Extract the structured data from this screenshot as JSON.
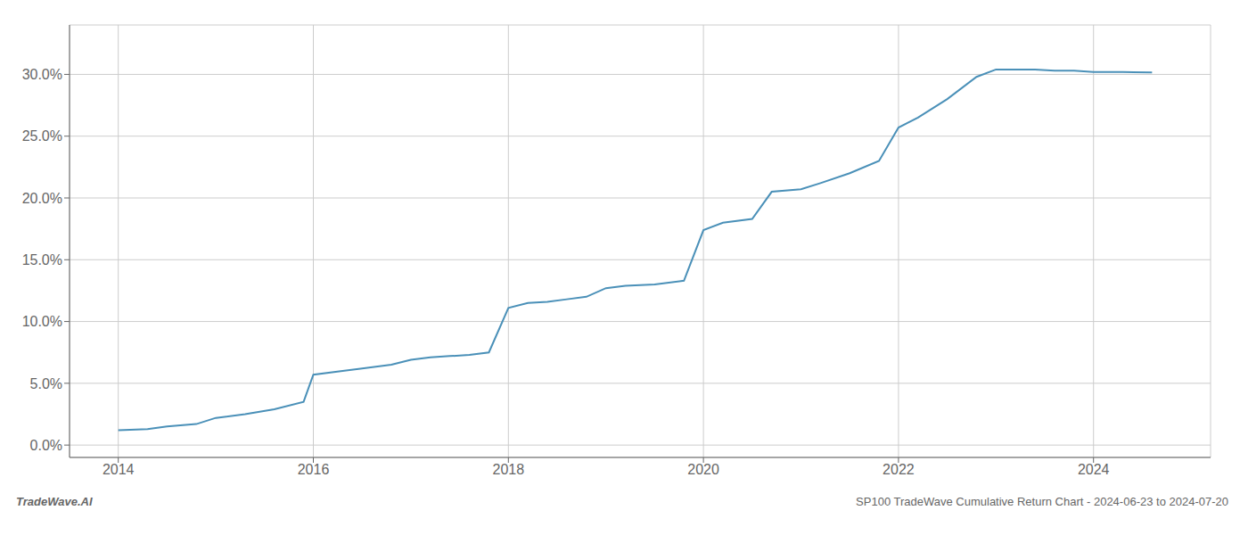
{
  "chart_data": {
    "type": "line",
    "title": "SP100 TradeWave Cumulative Return Chart - 2024-06-23 to 2024-07-20",
    "annotations": [
      "TradeWave.AI"
    ],
    "x": [
      2014.0,
      2014.3,
      2014.5,
      2014.8,
      2015.0,
      2015.3,
      2015.6,
      2015.9,
      2016.0,
      2016.3,
      2016.5,
      2016.8,
      2017.0,
      2017.2,
      2017.4,
      2017.6,
      2017.8,
      2018.0,
      2018.2,
      2018.4,
      2018.6,
      2018.8,
      2019.0,
      2019.2,
      2019.5,
      2019.8,
      2020.0,
      2020.2,
      2020.5,
      2020.7,
      2021.0,
      2021.2,
      2021.5,
      2021.8,
      2022.0,
      2022.2,
      2022.5,
      2022.8,
      2023.0,
      2023.2,
      2023.4,
      2023.6,
      2023.8,
      2024.0,
      2024.3,
      2024.6
    ],
    "values": [
      1.2,
      1.3,
      1.5,
      1.7,
      2.2,
      2.5,
      2.9,
      3.5,
      5.7,
      6.0,
      6.2,
      6.5,
      6.9,
      7.1,
      7.2,
      7.3,
      7.5,
      11.1,
      11.5,
      11.6,
      11.8,
      12.0,
      12.7,
      12.9,
      13.0,
      13.3,
      17.4,
      18.0,
      18.3,
      20.5,
      20.7,
      21.2,
      22.0,
      23.0,
      25.7,
      26.5,
      28.0,
      29.8,
      30.4,
      30.4,
      30.4,
      30.3,
      30.3,
      30.2,
      30.2,
      30.15
    ],
    "color": "#4a90b8",
    "xlim": [
      2013.5,
      2025.2
    ],
    "ylim": [
      -1.0,
      34.0
    ],
    "xticks": [
      2014,
      2016,
      2018,
      2020,
      2022,
      2024
    ],
    "yticks": [
      {
        "value": 0,
        "label": "0.0%"
      },
      {
        "value": 5,
        "label": "5.0%"
      },
      {
        "value": 10,
        "label": "10.0%"
      },
      {
        "value": 15,
        "label": "15.0%"
      },
      {
        "value": 20,
        "label": "20.0%"
      },
      {
        "value": 25,
        "label": "25.0%"
      },
      {
        "value": 30,
        "label": "30.0%"
      }
    ],
    "grid": true
  }
}
